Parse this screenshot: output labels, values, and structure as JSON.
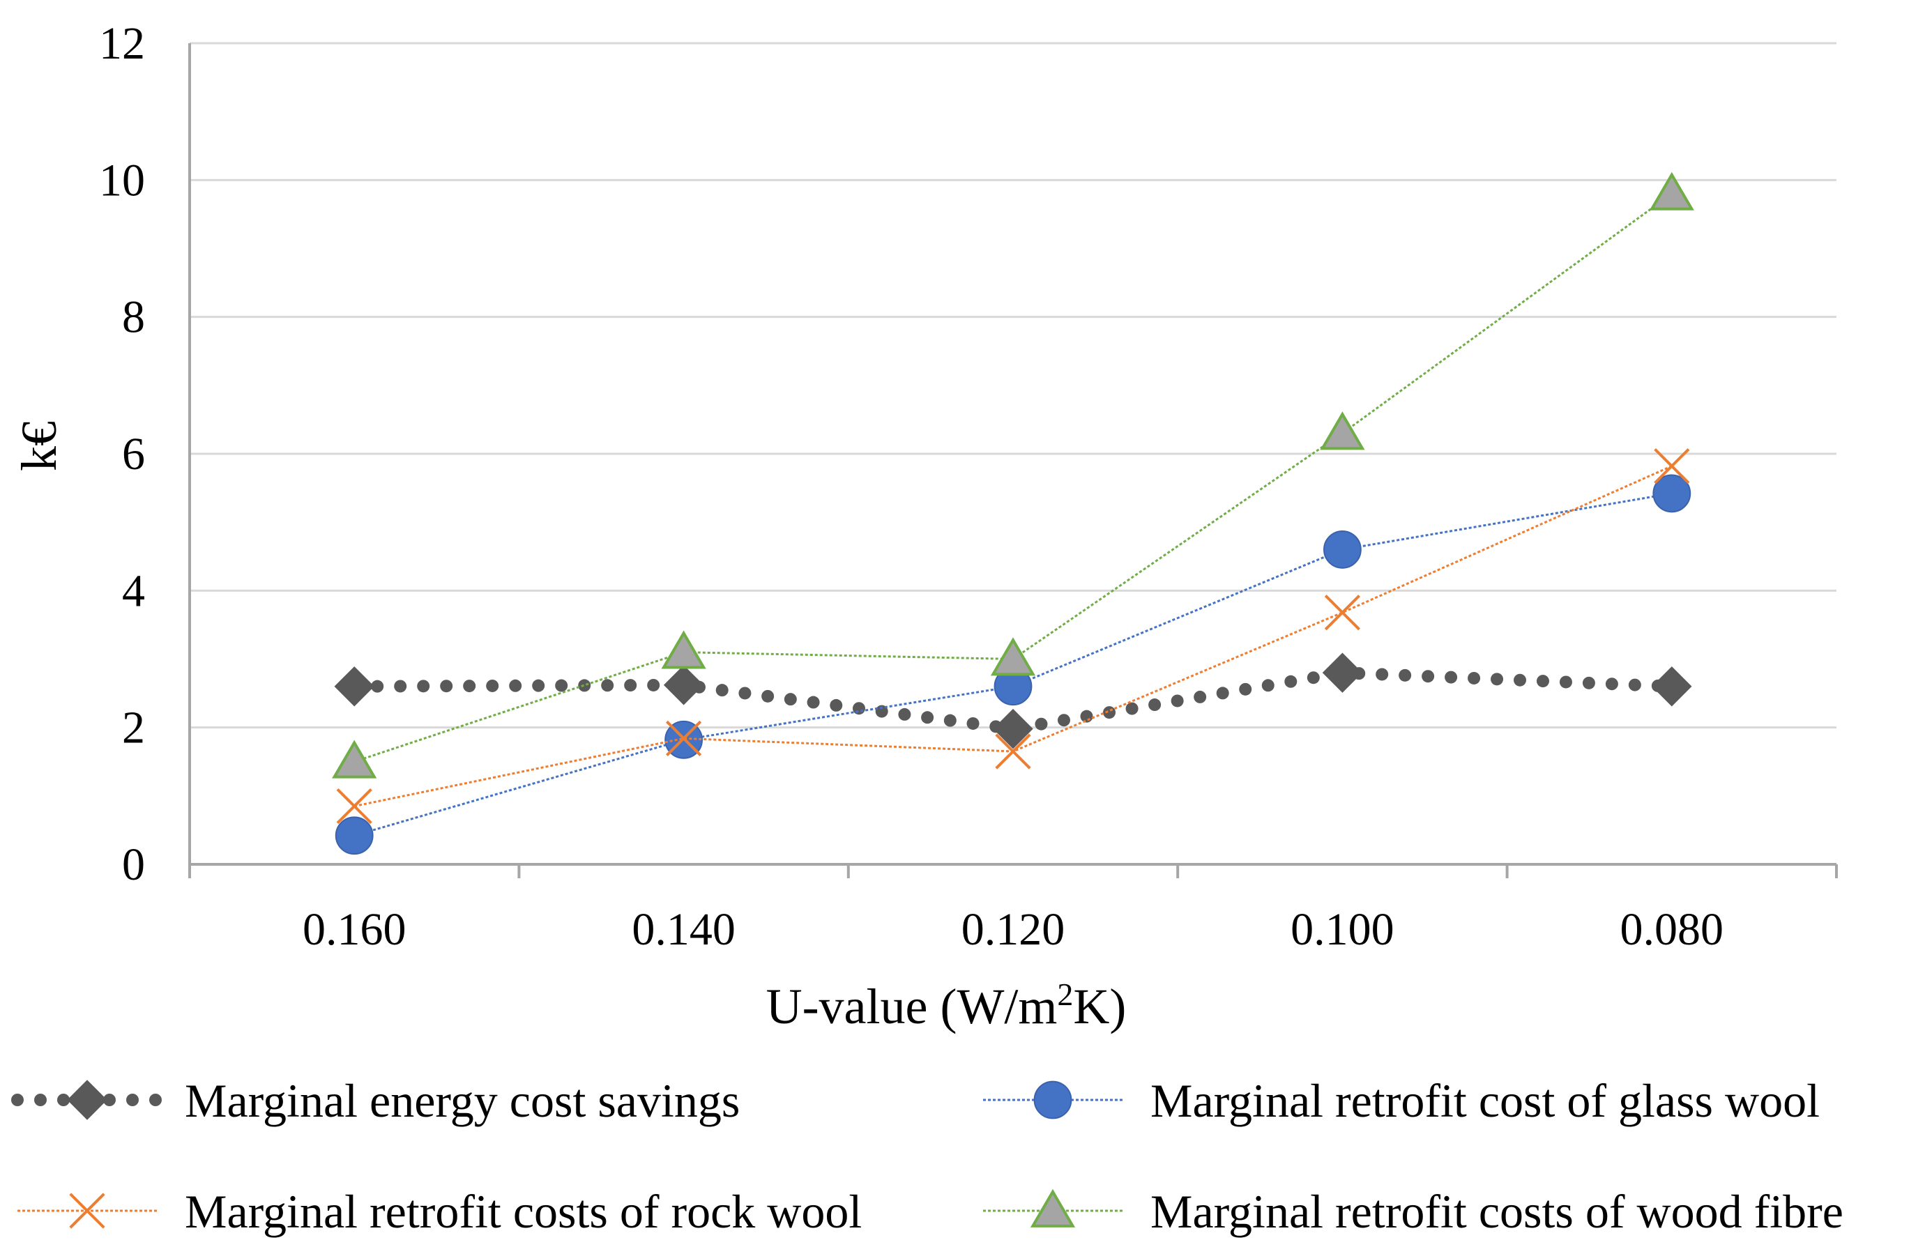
{
  "chart_data": {
    "type": "line",
    "title": "",
    "xlabel": "U-value (W/m",
    "xlabel_sup": "2",
    "xlabel_end": "K)",
    "ylabel": "k€",
    "ylim": [
      0,
      12
    ],
    "yticks": [
      "0",
      "2",
      "4",
      "6",
      "8",
      "10",
      "12"
    ],
    "categories": [
      "0.160",
      "0.140",
      "0.120",
      "0.100",
      "0.080"
    ],
    "grid": "horizontal",
    "legend_position": "bottom",
    "series": [
      {
        "name": "Marginal energy cost savings",
        "values": [
          2.6,
          2.62,
          1.98,
          2.8,
          2.6
        ],
        "color": "#595959",
        "marker": "diamond",
        "line_style": "dotted-thick"
      },
      {
        "name": "Marginal retrofit cost of glass wool",
        "values": [
          0.42,
          1.82,
          2.6,
          4.6,
          5.42
        ],
        "color": "#4472C4",
        "marker": "circle",
        "line_style": "dotted-thin"
      },
      {
        "name": "Marginal retrofit costs of rock wool",
        "values": [
          0.85,
          1.84,
          1.65,
          3.68,
          5.82
        ],
        "color": "#ED7D31",
        "marker": "x",
        "line_style": "dotted-thin"
      },
      {
        "name": "Marginal retrofit costs of wood fibre",
        "values": [
          1.5,
          3.1,
          3.0,
          6.3,
          9.8
        ],
        "color": "#70AD47",
        "fill": "#A5A5A5",
        "marker": "triangle",
        "line_style": "dotted-thin"
      }
    ]
  }
}
